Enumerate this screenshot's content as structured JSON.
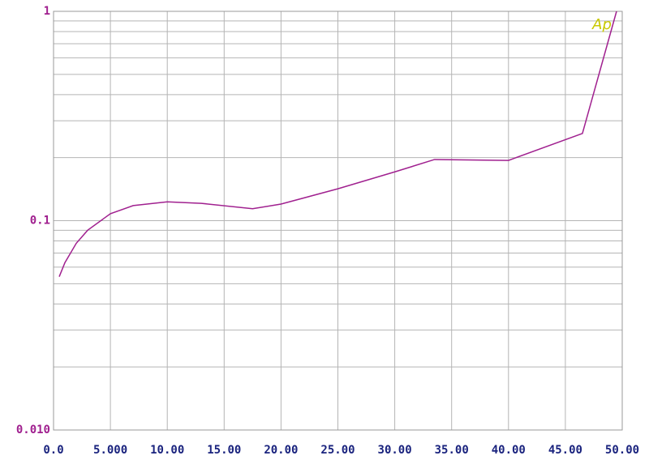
{
  "chart_data": {
    "type": "line",
    "annotation": "Ap",
    "x": [
      0.5,
      1,
      2,
      3,
      5,
      7,
      10,
      13,
      17.5,
      20,
      25,
      30,
      33.5,
      40,
      46.5,
      49.5
    ],
    "series": [
      {
        "color": "#a0208f",
        "values": [
          0.054,
          0.063,
          0.078,
          0.09,
          0.108,
          0.118,
          0.123,
          0.121,
          0.114,
          0.12,
          0.142,
          0.171,
          0.196,
          0.194,
          0.261,
          1.0
        ]
      }
    ],
    "xlim": [
      0,
      50
    ],
    "xticks": [
      {
        "value": 0,
        "label": "0.0"
      },
      {
        "value": 5,
        "label": "5.000"
      },
      {
        "value": 10,
        "label": "10.00"
      },
      {
        "value": 15,
        "label": "15.00"
      },
      {
        "value": 20,
        "label": "20.00"
      },
      {
        "value": 25,
        "label": "25.00"
      },
      {
        "value": 30,
        "label": "30.00"
      },
      {
        "value": 35,
        "label": "35.00"
      },
      {
        "value": 40,
        "label": "40.00"
      },
      {
        "value": 45,
        "label": "45.00"
      },
      {
        "value": 50,
        "label": "50.00"
      }
    ],
    "ylim": [
      0.01,
      1
    ],
    "yticks": [
      {
        "value": 0.01,
        "label": "0.010"
      },
      0.1,
      1
    ],
    "log_y": true,
    "grid": true
  }
}
